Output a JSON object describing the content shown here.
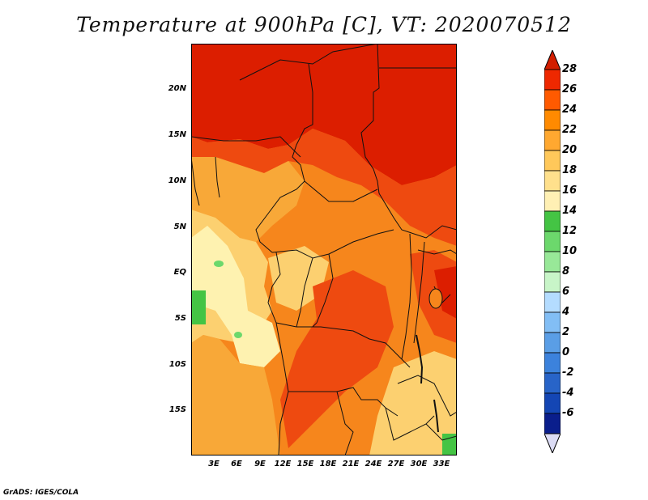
{
  "title": "Temperature at 900hPa [C], VT: 2020070512",
  "footer": "GrADS: IGES/COLA",
  "lat_labels": [
    "20N",
    "15N",
    "10N",
    "5N",
    "EQ",
    "5S",
    "10S",
    "15S"
  ],
  "lon_labels": [
    "3E",
    "6E",
    "9E",
    "12E",
    "15E",
    "18E",
    "21E",
    "24E",
    "27E",
    "30E",
    "33E"
  ],
  "colorbar": {
    "labels": [
      "28",
      "26",
      "24",
      "22",
      "20",
      "18",
      "16",
      "14",
      "12",
      "10",
      "8",
      "6",
      "4",
      "2",
      "0",
      "-2",
      "-4",
      "-6"
    ],
    "colors": [
      "#ee2800",
      "#ff5a00",
      "#ff8a00",
      "#ffa830",
      "#ffc85a",
      "#ffe08c",
      "#fff0b4",
      "#44c444",
      "#6cd86c",
      "#98e898",
      "#c8f5c8",
      "#b4dcff",
      "#82bef5",
      "#5a9ee6",
      "#3c82dc",
      "#2864c8",
      "#1446b4",
      "#0a1e8c"
    ],
    "top_color": "#d21e00",
    "bottom_color": "#dcdcf5"
  },
  "map_colors": {
    "hot": "#dc1e00",
    "warm_red": "#ee4a10",
    "orange": "#f6861c",
    "light_orange": "#f8a838",
    "pale": "#fcd070",
    "cream": "#fef2b0",
    "green": "#44c444",
    "border": "#111111"
  }
}
